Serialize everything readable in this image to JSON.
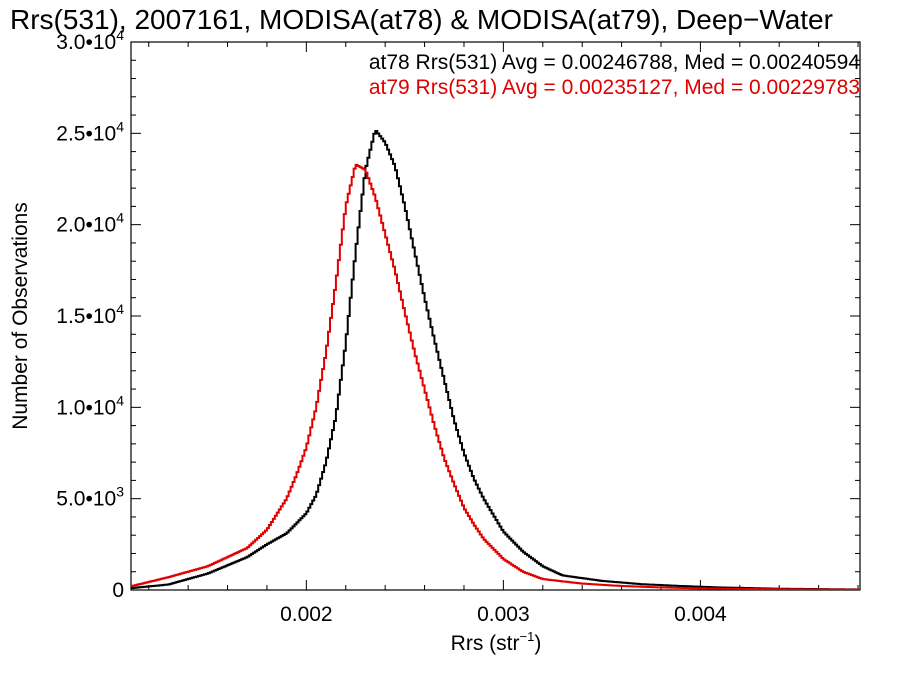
{
  "chart_data": {
    "type": "line",
    "title": "Rrs(531), 2007161, MODISA(at78) & MODISA(at79), Deep−Water",
    "xlabel": "Rrs (str",
    "xlabel_sup": "−1",
    "xlabel_close": ")",
    "ylabel": "Number of Observations",
    "xlim": [
      0.00111,
      0.00481
    ],
    "ylim": [
      0,
      30000
    ],
    "xticks": [
      {
        "value": 0.002,
        "label": "0.002"
      },
      {
        "value": 0.003,
        "label": "0.003"
      },
      {
        "value": 0.004,
        "label": "0.004"
      }
    ],
    "yticks": [
      {
        "value": 0,
        "mant": "0",
        "exp": ""
      },
      {
        "value": 5000,
        "mant": "5.0•10",
        "exp": "3"
      },
      {
        "value": 10000,
        "mant": "1.0•10",
        "exp": "4"
      },
      {
        "value": 15000,
        "mant": "1.5•10",
        "exp": "4"
      },
      {
        "value": 20000,
        "mant": "2.0•10",
        "exp": "4"
      },
      {
        "value": 25000,
        "mant": "2.5•10",
        "exp": "4"
      },
      {
        "value": 30000,
        "mant": "3.0•10",
        "exp": "4"
      }
    ],
    "legend": [
      {
        "text": "at78 Rrs(531) Avg = 0.00246788, Med = 0.00240594",
        "color": "#000000"
      },
      {
        "text": "at79 Rrs(531) Avg = 0.00235127, Med = 0.00229783",
        "color": "#e00000"
      }
    ],
    "legend_position": "top-right",
    "grid": false,
    "series": [
      {
        "color": "#000000",
        "points": [
          [
            0.00111,
            100
          ],
          [
            0.0013,
            300
          ],
          [
            0.0015,
            900
          ],
          [
            0.0017,
            1800
          ],
          [
            0.0018,
            2500
          ],
          [
            0.0019,
            3100
          ],
          [
            0.002,
            4200
          ],
          [
            0.00205,
            5200
          ],
          [
            0.0021,
            7000
          ],
          [
            0.00215,
            9500
          ],
          [
            0.0022,
            13500
          ],
          [
            0.00225,
            18500
          ],
          [
            0.0023,
            23000
          ],
          [
            0.00235,
            25200
          ],
          [
            0.0024,
            24500
          ],
          [
            0.00245,
            23200
          ],
          [
            0.0025,
            21000
          ],
          [
            0.00255,
            18500
          ],
          [
            0.0026,
            16000
          ],
          [
            0.00265,
            13700
          ],
          [
            0.0027,
            11500
          ],
          [
            0.00275,
            9300
          ],
          [
            0.0028,
            7500
          ],
          [
            0.00285,
            6100
          ],
          [
            0.0029,
            5000
          ],
          [
            0.00295,
            4100
          ],
          [
            0.003,
            3200
          ],
          [
            0.0031,
            2100
          ],
          [
            0.0032,
            1300
          ],
          [
            0.0033,
            800
          ],
          [
            0.0035,
            500
          ],
          [
            0.0037,
            320
          ],
          [
            0.0039,
            220
          ],
          [
            0.0041,
            140
          ],
          [
            0.0044,
            70
          ],
          [
            0.0048,
            30
          ]
        ]
      },
      {
        "color": "#e00000",
        "points": [
          [
            0.00111,
            200
          ],
          [
            0.0013,
            700
          ],
          [
            0.0015,
            1300
          ],
          [
            0.0017,
            2300
          ],
          [
            0.0018,
            3300
          ],
          [
            0.0019,
            5000
          ],
          [
            0.00195,
            6300
          ],
          [
            0.002,
            7800
          ],
          [
            0.00205,
            10000
          ],
          [
            0.0021,
            13000
          ],
          [
            0.00215,
            16800
          ],
          [
            0.0022,
            21000
          ],
          [
            0.00225,
            23300
          ],
          [
            0.0023,
            23000
          ],
          [
            0.00235,
            21500
          ],
          [
            0.0024,
            19500
          ],
          [
            0.00245,
            17500
          ],
          [
            0.0025,
            15200
          ],
          [
            0.00255,
            13000
          ],
          [
            0.0026,
            11000
          ],
          [
            0.00265,
            9000
          ],
          [
            0.0027,
            7200
          ],
          [
            0.00275,
            5800
          ],
          [
            0.0028,
            4500
          ],
          [
            0.00285,
            3600
          ],
          [
            0.0029,
            2800
          ],
          [
            0.003,
            1700
          ],
          [
            0.0031,
            1000
          ],
          [
            0.0032,
            600
          ],
          [
            0.0034,
            350
          ],
          [
            0.0036,
            220
          ],
          [
            0.0038,
            140
          ],
          [
            0.004,
            90
          ],
          [
            0.0043,
            50
          ],
          [
            0.0048,
            20
          ]
        ]
      }
    ]
  }
}
